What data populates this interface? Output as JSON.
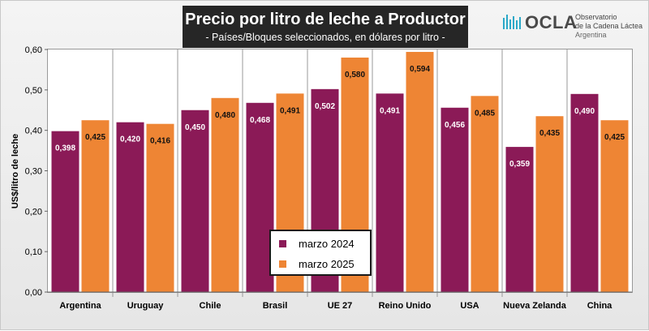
{
  "header": {
    "title": "Precio por litro de leche a Productor",
    "subtitle": "- Países/Bloques seleccionados, en dólares por litro -"
  },
  "logo": {
    "name": "OCLA",
    "line1": "Observatorio",
    "line2": "de la Cadena Láctea",
    "line3": "Argentina",
    "icon": "wave-bars-icon",
    "color": "#2ba8c8"
  },
  "colors": {
    "series_2024": "#8b1a57",
    "series_2025": "#ee8534"
  },
  "chart_data": {
    "type": "bar",
    "title": "Precio por litro de leche a Productor",
    "subtitle": "- Países/Bloques seleccionados, en dólares por litro -",
    "xlabel": "",
    "ylabel": "US$/litro de leche",
    "ylim": [
      0,
      0.6
    ],
    "yticks": [
      "0,00",
      "0,10",
      "0,20",
      "0,30",
      "0,40",
      "0,50",
      "0,60"
    ],
    "grid": false,
    "legend_position": "bottom-center",
    "categories": [
      "Argentina",
      "Uruguay",
      "Chile",
      "Brasil",
      "UE 27",
      "Reino Unido",
      "USA",
      "Nueva Zelanda",
      "China"
    ],
    "series": [
      {
        "name": "marzo 2024",
        "values": [
          0.398,
          0.42,
          0.45,
          0.468,
          0.502,
          0.491,
          0.456,
          0.359,
          0.49
        ],
        "labels": [
          "0,398",
          "0,420",
          "0,450",
          "0,468",
          "0,502",
          "0,491",
          "0,456",
          "0,359",
          "0,490"
        ]
      },
      {
        "name": "marzo 2025",
        "values": [
          0.425,
          0.416,
          0.48,
          0.491,
          0.58,
          0.594,
          0.485,
          0.435,
          0.425
        ],
        "labels": [
          "0,425",
          "0,416",
          "0,480",
          "0,491",
          "0,580",
          "0,594",
          "0,485",
          "0,435",
          "0,425"
        ]
      }
    ]
  }
}
